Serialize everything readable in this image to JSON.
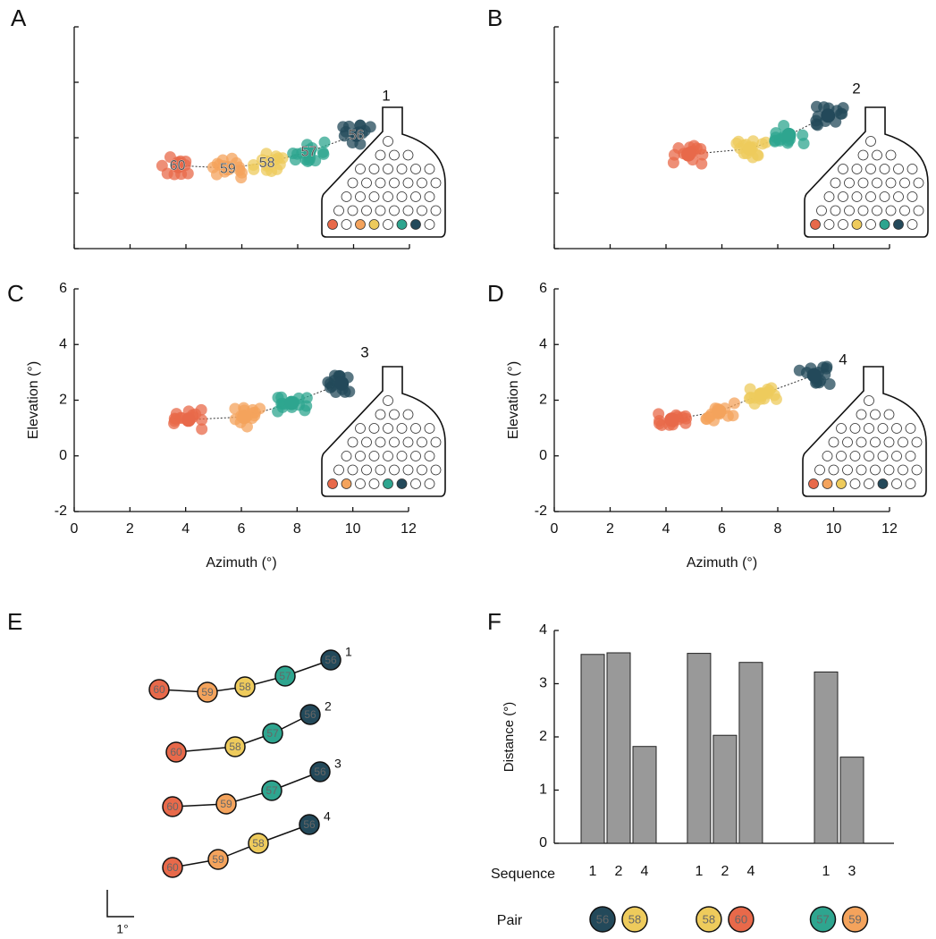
{
  "chart_data": [
    {
      "type": "scatter",
      "panels": [
        {
          "letter": "A",
          "inset_label": "1",
          "tick_labels": false,
          "cluster_labels": true,
          "xlim": [
            0,
            12
          ],
          "ylim": [
            -2,
            6
          ],
          "xticks": [
            0,
            2,
            4,
            6,
            8,
            10,
            12
          ],
          "yticks": [
            -2,
            0,
            2,
            4,
            6
          ],
          "clusters": [
            {
              "label": "60",
              "color": "#e8694a",
              "x": 3.7,
              "y": 1.0
            },
            {
              "label": "59",
              "color": "#f4a35c",
              "x": 5.5,
              "y": 0.9
            },
            {
              "label": "58",
              "color": "#eecb5c",
              "x": 6.9,
              "y": 1.1
            },
            {
              "label": "57",
              "color": "#2ea58f",
              "x": 8.4,
              "y": 1.5
            },
            {
              "label": "56",
              "color": "#23495a",
              "x": 10.1,
              "y": 2.1
            }
          ]
        },
        {
          "letter": "B",
          "inset_label": "2",
          "tick_labels": false,
          "cluster_labels": false,
          "xlim": [
            0,
            12
          ],
          "ylim": [
            -2,
            6
          ],
          "xticks": [
            0,
            2,
            4,
            6,
            8,
            10,
            12
          ],
          "yticks": [
            -2,
            0,
            2,
            4,
            6
          ],
          "clusters": [
            {
              "label": "60",
              "color": "#e8694a",
              "x": 4.8,
              "y": 1.4
            },
            {
              "label": "58",
              "color": "#eecb5c",
              "x": 7.0,
              "y": 1.6
            },
            {
              "label": "57",
              "color": "#2ea58f",
              "x": 8.4,
              "y": 2.1
            },
            {
              "label": "56",
              "color": "#23495a",
              "x": 9.8,
              "y": 2.8
            }
          ]
        },
        {
          "letter": "C",
          "inset_label": "3",
          "tick_labels": true,
          "cluster_labels": false,
          "xlabel": "Azimuth (°)",
          "ylabel": "Elevation (°)",
          "xlim": [
            0,
            12
          ],
          "ylim": [
            -2,
            6
          ],
          "xticks": [
            0,
            2,
            4,
            6,
            8,
            10,
            12
          ],
          "yticks": [
            -2,
            0,
            2,
            4,
            6
          ],
          "clusters": [
            {
              "label": "60",
              "color": "#e8694a",
              "x": 4.1,
              "y": 1.3
            },
            {
              "label": "59",
              "color": "#f4a35c",
              "x": 6.1,
              "y": 1.4
            },
            {
              "label": "57",
              "color": "#2ea58f",
              "x": 7.8,
              "y": 1.9
            },
            {
              "label": "56",
              "color": "#23495a",
              "x": 9.6,
              "y": 2.6
            }
          ]
        },
        {
          "letter": "D",
          "inset_label": "4",
          "tick_labels": true,
          "cluster_labels": false,
          "xlabel": "Azimuth (°)",
          "ylabel": "Elevation (°)",
          "xlim": [
            0,
            12
          ],
          "ylim": [
            -2,
            6
          ],
          "xticks": [
            0,
            2,
            4,
            6,
            8,
            10,
            12
          ],
          "yticks": [
            -2,
            0,
            2,
            4,
            6
          ],
          "clusters": [
            {
              "label": "60",
              "color": "#e8694a",
              "x": 4.2,
              "y": 1.3
            },
            {
              "label": "59",
              "color": "#f4a35c",
              "x": 5.9,
              "y": 1.6
            },
            {
              "label": "58",
              "color": "#eecb5c",
              "x": 7.4,
              "y": 2.2
            },
            {
              "label": "56",
              "color": "#23495a",
              "x": 9.3,
              "y": 2.9
            }
          ]
        }
      ]
    },
    {
      "type": "sequence",
      "letter": "E",
      "scale_bar_label": "1°"
    },
    {
      "type": "bar",
      "letter": "F",
      "ylabel": "Distance (°)",
      "ylim": [
        0,
        4
      ],
      "yticks": [
        0,
        1,
        2,
        3,
        4
      ],
      "color": "#999999",
      "sequence_label": "Sequence",
      "pair_label": "Pair",
      "groups": [
        {
          "categories": [
            "1",
            "2",
            "4"
          ],
          "values": [
            3.55,
            3.58,
            1.82
          ],
          "pair": [
            {
              "label": "56",
              "color": "#23495a"
            },
            {
              "label": "58",
              "color": "#eecb5c"
            }
          ]
        },
        {
          "categories": [
            "1",
            "2",
            "4"
          ],
          "values": [
            3.57,
            2.03,
            3.4
          ],
          "pair": [
            {
              "label": "58",
              "color": "#eecb5c"
            },
            {
              "label": "60",
              "color": "#e8694a"
            }
          ]
        },
        {
          "categories": [
            "1",
            "3"
          ],
          "values": [
            3.22,
            1.62
          ],
          "pair": [
            {
              "label": "57",
              "color": "#2ea58f"
            },
            {
              "label": "59",
              "color": "#f4a35c"
            }
          ]
        }
      ]
    }
  ]
}
